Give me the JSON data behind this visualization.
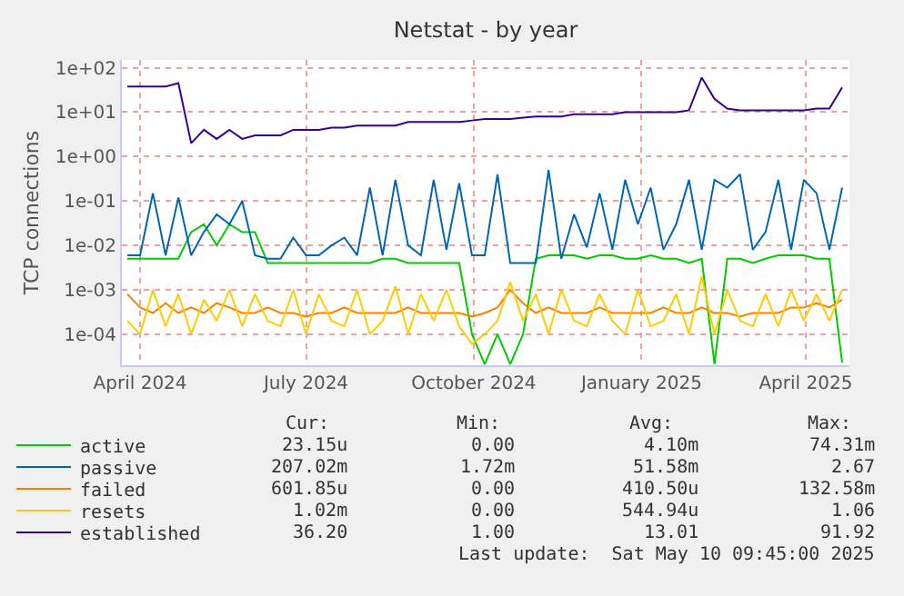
{
  "chart_data": {
    "type": "line",
    "title": "Netstat - by year",
    "ylabel": "TCP connections",
    "log": true,
    "grid": true,
    "legend": "bottom",
    "ylim": [
      2e-05,
      150
    ],
    "yticks": [
      {
        "value": 0.0001,
        "label": "1e-04"
      },
      {
        "value": 0.001,
        "label": "1e-03"
      },
      {
        "value": 0.01,
        "label": "1e-02"
      },
      {
        "value": 0.1,
        "label": "1e-01"
      },
      {
        "value": 1,
        "label": "1e+00"
      },
      {
        "value": 10,
        "label": "1e+01"
      },
      {
        "value": 100,
        "label": "1e+02"
      }
    ],
    "xlim": [
      "2024-03-22",
      "2025-04-25"
    ],
    "xticks": [
      {
        "value": "2024-04-01",
        "label": "April 2024"
      },
      {
        "value": "2024-07-01",
        "label": "July 2024"
      },
      {
        "value": "2024-10-01",
        "label": "October 2024"
      },
      {
        "value": "2025-01-01",
        "label": "January 2025"
      },
      {
        "value": "2025-04-01",
        "label": "April 2025"
      }
    ],
    "x": [
      "2024-03-25",
      "2024-04-01",
      "2024-04-08",
      "2024-04-15",
      "2024-04-22",
      "2024-04-29",
      "2024-05-06",
      "2024-05-13",
      "2024-05-20",
      "2024-05-27",
      "2024-06-03",
      "2024-06-10",
      "2024-06-17",
      "2024-06-24",
      "2024-07-01",
      "2024-07-08",
      "2024-07-15",
      "2024-07-22",
      "2024-07-29",
      "2024-08-05",
      "2024-08-12",
      "2024-08-19",
      "2024-08-26",
      "2024-09-02",
      "2024-09-09",
      "2024-09-16",
      "2024-09-23",
      "2024-09-30",
      "2024-10-07",
      "2024-10-14",
      "2024-10-21",
      "2024-10-28",
      "2024-11-04",
      "2024-11-11",
      "2024-11-18",
      "2024-11-25",
      "2024-12-02",
      "2024-12-09",
      "2024-12-16",
      "2024-12-23",
      "2024-12-30",
      "2025-01-06",
      "2025-01-13",
      "2025-01-20",
      "2025-01-27",
      "2025-02-03",
      "2025-02-10",
      "2025-02-17",
      "2025-02-24",
      "2025-03-03",
      "2025-03-10",
      "2025-03-17",
      "2025-03-24",
      "2025-03-31",
      "2025-04-07",
      "2025-04-14",
      "2025-04-21"
    ],
    "series": [
      {
        "name": "active",
        "color": "#00cc00",
        "values": [
          0.005,
          0.005,
          0.005,
          0.005,
          0.005,
          0.02,
          0.03,
          0.01,
          0.03,
          0.02,
          0.02,
          0.004,
          0.004,
          0.004,
          0.004,
          0.004,
          0.004,
          0.004,
          0.004,
          0.004,
          0.005,
          0.005,
          0.004,
          0.004,
          0.004,
          0.004,
          0.004,
          0.0001,
          2.1e-05,
          0.0001,
          2.1e-05,
          0.0001,
          0.005,
          0.006,
          0.006,
          0.006,
          0.005,
          0.006,
          0.006,
          0.005,
          0.005,
          0.006,
          0.005,
          0.005,
          0.004,
          0.005,
          2.1e-05,
          0.005,
          0.005,
          0.004,
          0.005,
          0.006,
          0.006,
          0.006,
          0.005,
          0.005,
          2.3e-05
        ]
      },
      {
        "name": "passive",
        "color": "#0066b3",
        "values": [
          0.006,
          0.006,
          0.15,
          0.006,
          0.12,
          0.006,
          0.02,
          0.05,
          0.03,
          0.1,
          0.006,
          0.005,
          0.005,
          0.015,
          0.006,
          0.006,
          0.01,
          0.015,
          0.006,
          0.2,
          0.006,
          0.3,
          0.01,
          0.006,
          0.3,
          0.008,
          0.25,
          0.006,
          0.006,
          0.4,
          0.004,
          0.004,
          0.004,
          0.5,
          0.005,
          0.05,
          0.009,
          0.15,
          0.008,
          0.3,
          0.03,
          0.2,
          0.008,
          0.03,
          0.3,
          0.008,
          0.3,
          0.2,
          0.4,
          0.008,
          0.02,
          0.3,
          0.008,
          0.3,
          0.15,
          0.008,
          0.2
        ]
      },
      {
        "name": "failed",
        "color": "#ff8000",
        "values": [
          0.0008,
          0.0004,
          0.0003,
          0.0005,
          0.0003,
          0.0004,
          0.0003,
          0.0005,
          0.0004,
          0.0003,
          0.0003,
          0.0004,
          0.0003,
          0.0003,
          0.00025,
          0.0003,
          0.0003,
          0.0004,
          0.0003,
          0.0003,
          0.0003,
          0.0003,
          0.0004,
          0.0003,
          0.0003,
          0.0003,
          0.0003,
          0.00025,
          0.0003,
          0.0004,
          0.001,
          0.0005,
          0.0003,
          0.0004,
          0.0003,
          0.0003,
          0.0003,
          0.0004,
          0.0003,
          0.0003,
          0.0003,
          0.0003,
          0.0004,
          0.0003,
          0.0003,
          0.0004,
          0.0003,
          0.0003,
          0.00025,
          0.0003,
          0.0003,
          0.0003,
          0.0004,
          0.0004,
          0.0005,
          0.0004,
          0.0006
        ]
      },
      {
        "name": "resets",
        "color": "#ffcc00",
        "values": [
          0.0002,
          0.0001,
          0.001,
          0.00015,
          0.0008,
          0.0001,
          0.0006,
          0.0002,
          0.001,
          0.00015,
          0.0008,
          0.0002,
          0.00015,
          0.001,
          0.0001,
          0.0008,
          0.0002,
          0.00015,
          0.001,
          0.0001,
          0.0002,
          0.0012,
          0.0001,
          0.0008,
          0.0002,
          0.001,
          0.00015,
          6e-05,
          0.0001,
          0.0002,
          0.0015,
          0.0002,
          0.0008,
          0.0001,
          0.001,
          0.0002,
          0.00015,
          0.0008,
          0.0002,
          0.0001,
          0.001,
          0.00015,
          0.0002,
          0.0008,
          0.0001,
          0.002,
          0.0001,
          0.001,
          0.0002,
          0.00015,
          0.0008,
          0.00015,
          0.001,
          0.0002,
          0.0008,
          0.0002,
          0.001
        ]
      },
      {
        "name": "established",
        "color": "#330099",
        "values": [
          38,
          38,
          38,
          38,
          45,
          2,
          4,
          2.5,
          4,
          2.5,
          3,
          3,
          3,
          4,
          4,
          4,
          4.5,
          4.5,
          5,
          5,
          5,
          5,
          6,
          6,
          6,
          6,
          6,
          6.5,
          7,
          7,
          7,
          7.5,
          8,
          8,
          8,
          9,
          9,
          9,
          9,
          10,
          10,
          10,
          10,
          10,
          11,
          60,
          20,
          12,
          11,
          11,
          11,
          11,
          11,
          11,
          12,
          12,
          36
        ]
      }
    ],
    "annotations": [
      "Cur:",
      "Min:",
      "Avg:",
      "Max:",
      "23.15u",
      "0.00",
      "4.10m",
      "74.31m",
      "207.02m",
      "1.72m",
      "51.58m",
      "2.67",
      "601.85u",
      "0.00",
      "410.50u",
      "132.58m",
      "1.02m",
      "0.00",
      "544.94u",
      "1.06",
      "36.20",
      "1.00",
      "13.01",
      "91.92",
      "Last update:  Sat May 10 09:45:00 2025"
    ]
  }
}
